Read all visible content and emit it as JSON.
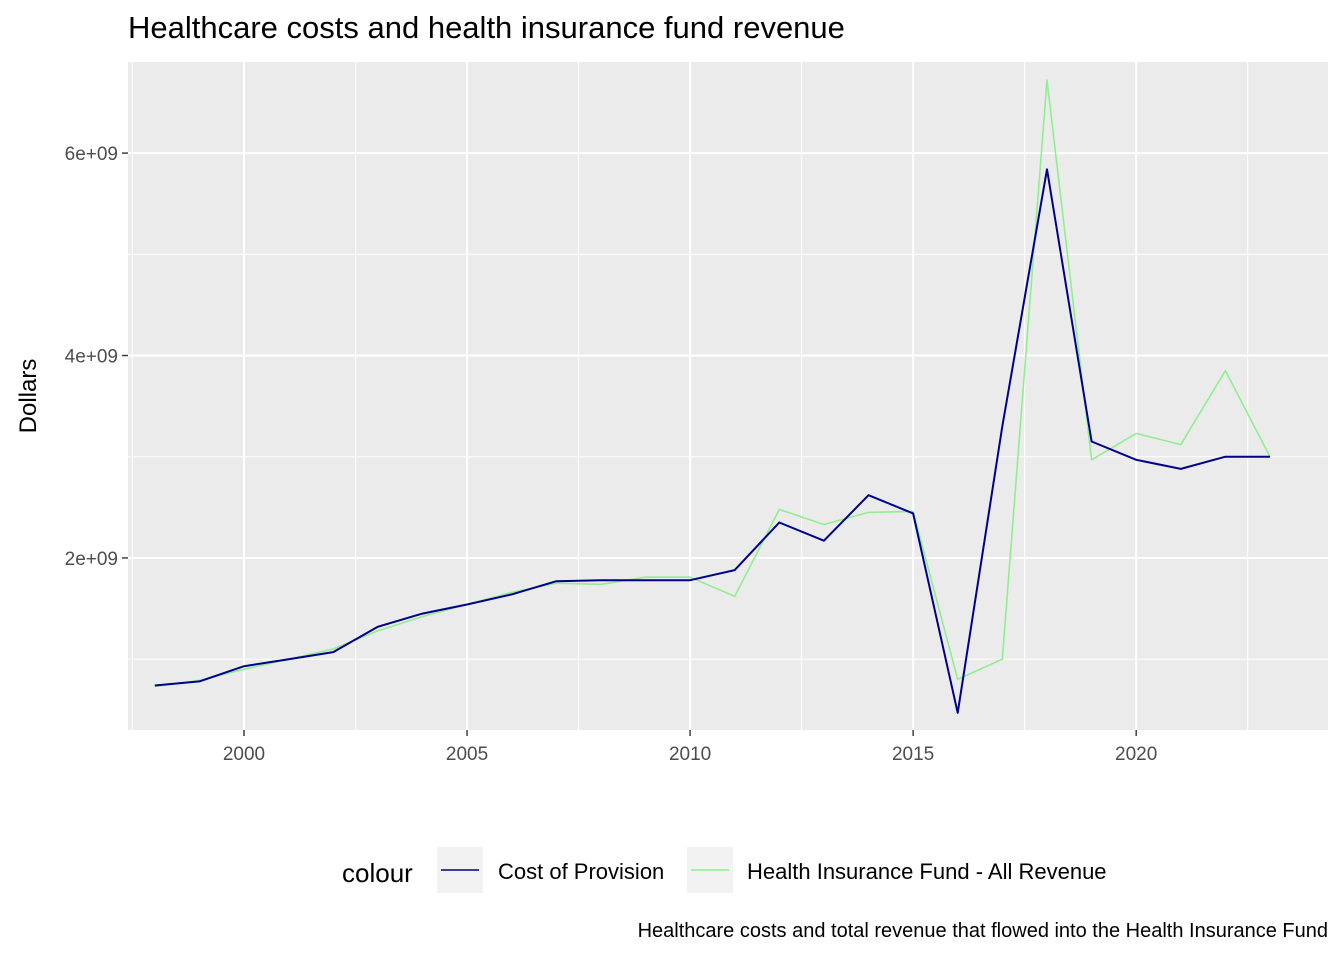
{
  "chart_data": {
    "type": "line",
    "title": "Healthcare costs and health insurance fund revenue",
    "caption": "Healthcare costs and total revenue that flowed into the Health Insurance Fund",
    "xlabel": "",
    "ylabel": "Dollars",
    "xlim": [
      1997.4,
      2024.3
    ],
    "ylim": [
      300000000,
      6900000000
    ],
    "x_ticks": [
      2000,
      2005,
      2010,
      2015,
      2020
    ],
    "x_tick_labels": [
      "2000",
      "2005",
      "2010",
      "2015",
      "2020"
    ],
    "y_ticks": [
      2000000000,
      4000000000,
      6000000000
    ],
    "y_tick_labels": [
      "2e+09",
      "4e+09",
      "6e+09"
    ],
    "grid": true,
    "legend_title": "colour",
    "legend_position": "bottom",
    "x": [
      1998,
      1999,
      2000,
      2001,
      2002,
      2003,
      2004,
      2005,
      2006,
      2007,
      2008,
      2009,
      2010,
      2011,
      2012,
      2013,
      2014,
      2015,
      2016,
      2017,
      2018,
      2019,
      2020,
      2021,
      2022,
      2023
    ],
    "series": [
      {
        "name": "Cost of Provision",
        "color": "#00008b",
        "values": [
          740000000,
          780000000,
          930000000,
          1000000000,
          1070000000,
          1320000000,
          1450000000,
          1540000000,
          1640000000,
          1770000000,
          1780000000,
          1780000000,
          1780000000,
          1880000000,
          2350000000,
          2170000000,
          2620000000,
          2440000000,
          470000000,
          3300000000,
          5840000000,
          3150000000,
          2970000000,
          2880000000,
          3000000000,
          3000000000
        ]
      },
      {
        "name": "Health Insurance Fund - All Revenue",
        "color": "#90ee90",
        "values": [
          730000000,
          790000000,
          900000000,
          1000000000,
          1100000000,
          1280000000,
          1420000000,
          1540000000,
          1660000000,
          1750000000,
          1740000000,
          1810000000,
          1810000000,
          1620000000,
          2480000000,
          2330000000,
          2450000000,
          2460000000,
          800000000,
          1000000000,
          6720000000,
          2970000000,
          3230000000,
          3120000000,
          3850000000,
          3000000000
        ]
      }
    ]
  }
}
